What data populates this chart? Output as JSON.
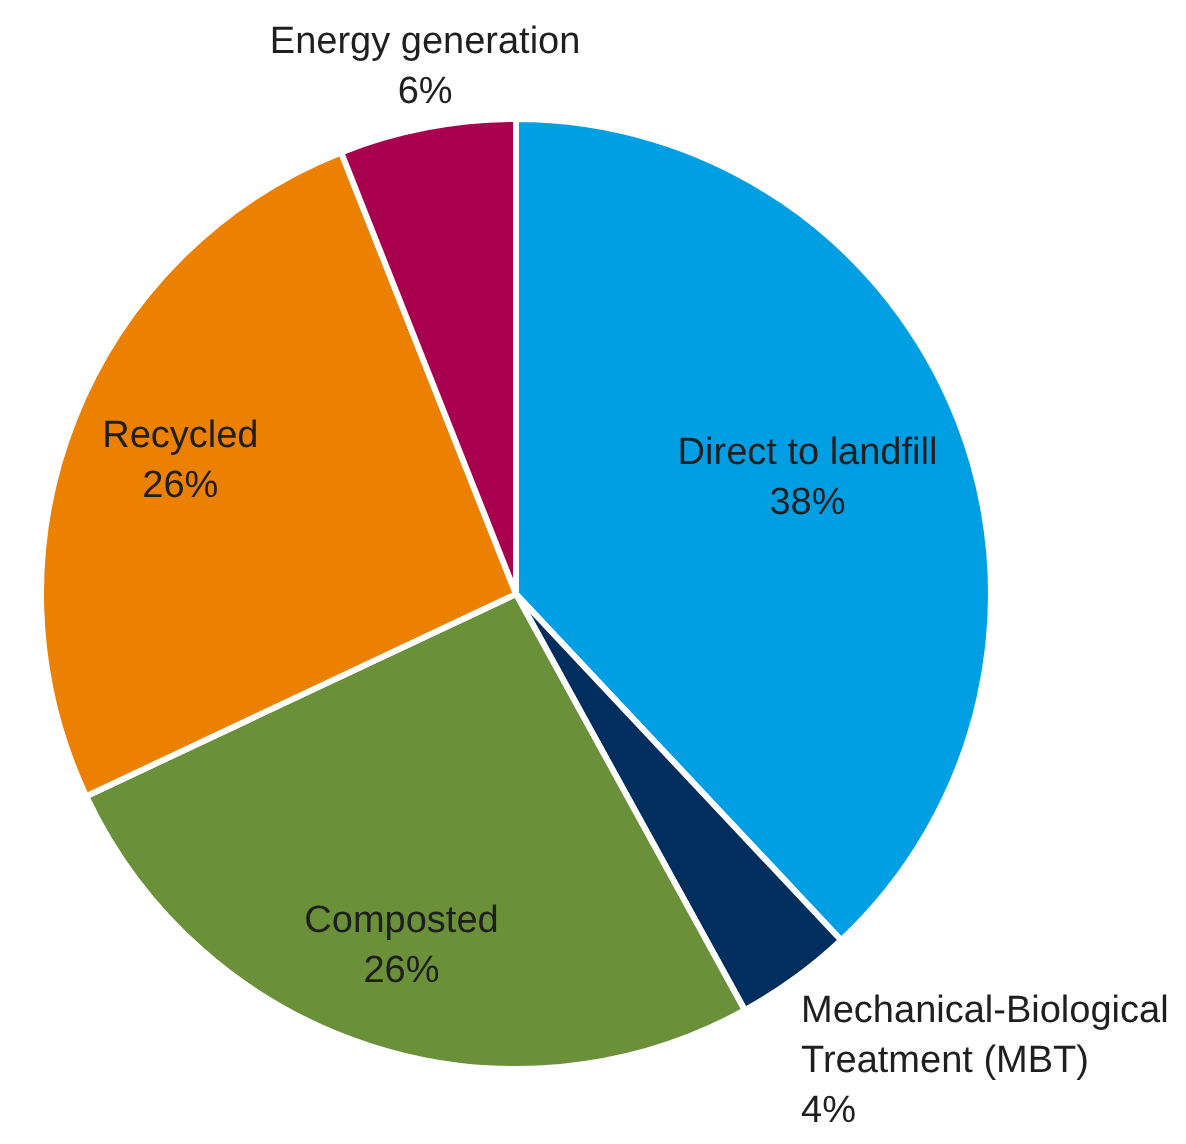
{
  "chart_data": {
    "type": "pie",
    "categories": [
      "Direct to landfill",
      "Mechanical-Biological Treatment (MBT)",
      "Composted",
      "Recycled",
      "Energy generation"
    ],
    "values": [
      38,
      4,
      26,
      26,
      6
    ],
    "value_labels": [
      "38%",
      "4%",
      "26%",
      "26%",
      "6%"
    ],
    "colors": [
      "#009fe3",
      "#002f5f",
      "#6a913a",
      "#ec8000",
      "#a8004e"
    ],
    "legend": false
  }
}
